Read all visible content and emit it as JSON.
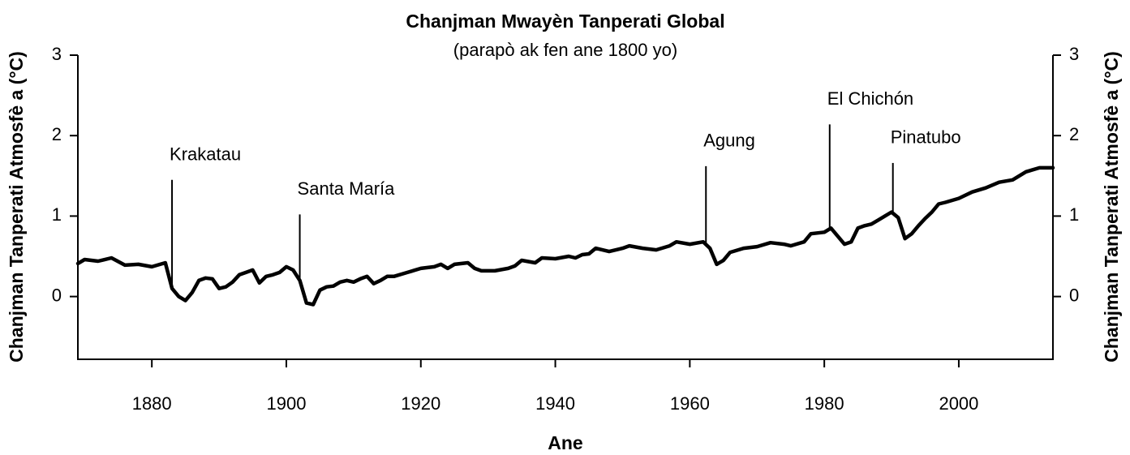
{
  "chart_data": {
    "type": "line",
    "title": "Chanjman Mwayèn Tanperati Global",
    "subtitle": "(parapò ak fen ane 1800 yo)",
    "x_label": "Ane",
    "y_label": "Chanjman Tanperati Atmosfè a (°C)",
    "y2_label": "Chanjman Tanperati Atmosfè a (°C)",
    "color": "#000000",
    "x": [
      1869,
      1870,
      1872,
      1874,
      1876,
      1878,
      1880,
      1882,
      1883,
      1884,
      1885,
      1886,
      1887,
      1888,
      1889,
      1890,
      1891,
      1892,
      1893,
      1894,
      1895,
      1896,
      1897,
      1898,
      1899,
      1900,
      1901,
      1902,
      1903,
      1904,
      1905,
      1906,
      1907,
      1908,
      1909,
      1910,
      1911,
      1912,
      1913,
      1914,
      1915,
      1916,
      1918,
      1920,
      1922,
      1923,
      1924,
      1925,
      1927,
      1928,
      1929,
      1931,
      1933,
      1934,
      1935,
      1937,
      1938,
      1940,
      1942,
      1943,
      1944,
      1945,
      1946,
      1948,
      1950,
      1951,
      1953,
      1955,
      1957,
      1958,
      1960,
      1962,
      1963,
      1964,
      1965,
      1966,
      1968,
      1970,
      1972,
      1974,
      1975,
      1977,
      1978,
      1980,
      1981,
      1982,
      1983,
      1984,
      1985,
      1986,
      1987,
      1988,
      1989,
      1990,
      1991,
      1992,
      1993,
      1994,
      1995,
      1996,
      1997,
      1998,
      2000,
      2002,
      2004,
      2006,
      2008,
      2010,
      2012,
      2014
    ],
    "values": [
      0.41,
      0.46,
      0.44,
      0.48,
      0.39,
      0.4,
      0.37,
      0.42,
      0.1,
      0.0,
      -0.05,
      0.05,
      0.2,
      0.23,
      0.22,
      0.1,
      0.12,
      0.18,
      0.27,
      0.3,
      0.33,
      0.17,
      0.25,
      0.27,
      0.3,
      0.37,
      0.33,
      0.2,
      -0.08,
      -0.1,
      0.08,
      0.12,
      0.13,
      0.18,
      0.2,
      0.18,
      0.22,
      0.25,
      0.16,
      0.2,
      0.25,
      0.25,
      0.3,
      0.35,
      0.37,
      0.4,
      0.35,
      0.4,
      0.42,
      0.35,
      0.32,
      0.32,
      0.35,
      0.38,
      0.45,
      0.42,
      0.48,
      0.47,
      0.5,
      0.48,
      0.52,
      0.53,
      0.6,
      0.56,
      0.6,
      0.63,
      0.6,
      0.58,
      0.63,
      0.68,
      0.65,
      0.68,
      0.6,
      0.4,
      0.45,
      0.55,
      0.6,
      0.62,
      0.67,
      0.65,
      0.63,
      0.68,
      0.78,
      0.8,
      0.85,
      0.75,
      0.65,
      0.68,
      0.85,
      0.88,
      0.9,
      0.95,
      1.0,
      1.05,
      0.98,
      0.72,
      0.78,
      0.88,
      0.97,
      1.05,
      1.15,
      1.17,
      1.22,
      1.3,
      1.35,
      1.42,
      1.45,
      1.55,
      1.6,
      1.6
    ],
    "annotations": [
      {
        "text": "Krakatau",
        "x": 1883,
        "y": 1.45
      },
      {
        "text": "Santa María",
        "x": 1902,
        "y": 1.02
      },
      {
        "text": "Agung",
        "x": 1962.4,
        "y": 1.62
      },
      {
        "text": "El Chichón",
        "x": 1980.8,
        "y": 2.14
      },
      {
        "text": "Pinatubo",
        "x": 1990.2,
        "y": 1.66
      }
    ],
    "xlim": [
      1869,
      2014
    ],
    "xticks": [
      1880,
      1900,
      1920,
      1940,
      1960,
      1980,
      2000
    ],
    "ylim": [
      -0.78,
      3
    ],
    "yticks": [
      0,
      1,
      2,
      3
    ],
    "y2lim": [
      -0.78,
      3
    ],
    "y2ticks": [
      0,
      1,
      2,
      3
    ]
  }
}
